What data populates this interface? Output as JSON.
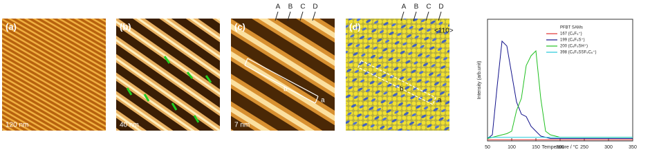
{
  "panels": [
    {
      "label": "(a)",
      "scale": "120 nm"
    },
    {
      "label": "(b)",
      "scale": "40 nm"
    },
    {
      "label": "(c)",
      "scale": "7 nm",
      "rows": [
        "A",
        "B",
        "C",
        "D"
      ],
      "points": [
        "a",
        "b"
      ]
    },
    {
      "label": "(d)",
      "direction": "<110>",
      "rows": [
        "A",
        "B",
        "C",
        "D"
      ],
      "points": [
        "a",
        "b"
      ]
    }
  ],
  "chart_data": {
    "type": "line",
    "legend_title": "PFBT SAMs",
    "xlabel": "Temperature / °C",
    "ylabel": "Intensity (arb.unit)",
    "x": [
      50,
      60,
      70,
      80,
      90,
      100,
      110,
      120,
      130,
      140,
      150,
      160,
      170,
      180,
      190,
      200,
      210,
      220,
      230,
      240,
      250,
      260,
      270,
      280,
      290,
      300,
      310,
      320,
      330,
      340,
      350
    ],
    "xlim": [
      50,
      350
    ],
    "xticks": [
      50,
      100,
      150,
      200,
      250,
      300,
      350
    ],
    "ylim": [
      0,
      1
    ],
    "legend": "upper right",
    "series": [
      {
        "name": "167 (C₆F₅⁺)",
        "color": "#e03030",
        "values": [
          0.01,
          0.01,
          0.01,
          0.01,
          0.01,
          0.01,
          0.01,
          0.01,
          0.01,
          0.01,
          0.01,
          0.01,
          0.01,
          0.01,
          0.01,
          0.01,
          0.01,
          0.01,
          0.01,
          0.01,
          0.01,
          0.01,
          0.01,
          0.01,
          0.01,
          0.01,
          0.01,
          0.01,
          0.01,
          0.01,
          0.01
        ]
      },
      {
        "name": "199 (C₆F₅S⁺)",
        "color": "#10108a",
        "values": [
          0.02,
          0.05,
          0.45,
          0.82,
          0.78,
          0.55,
          0.32,
          0.22,
          0.2,
          0.12,
          0.08,
          0.04,
          0.03,
          0.02,
          0.02,
          0.02,
          0.02,
          0.02,
          0.02,
          0.02,
          0.02,
          0.02,
          0.02,
          0.02,
          0.02,
          0.02,
          0.02,
          0.02,
          0.02,
          0.02,
          0.02
        ]
      },
      {
        "name": "200 (C₆F₅SH⁺)",
        "color": "#20c020",
        "values": [
          0.02,
          0.03,
          0.04,
          0.05,
          0.06,
          0.08,
          0.25,
          0.35,
          0.62,
          0.7,
          0.74,
          0.35,
          0.08,
          0.05,
          0.04,
          0.03,
          0.03,
          0.03,
          0.03,
          0.03,
          0.03,
          0.03,
          0.03,
          0.03,
          0.03,
          0.03,
          0.03,
          0.03,
          0.03,
          0.03,
          0.03
        ]
      },
      {
        "name": "398 (C₆F₅SSF₅C₆⁺)",
        "color": "#20c8d8",
        "values": [
          0.03,
          0.03,
          0.03,
          0.03,
          0.03,
          0.03,
          0.03,
          0.03,
          0.03,
          0.03,
          0.03,
          0.03,
          0.03,
          0.03,
          0.03,
          0.03,
          0.03,
          0.03,
          0.03,
          0.03,
          0.03,
          0.03,
          0.03,
          0.03,
          0.03,
          0.03,
          0.03,
          0.03,
          0.03,
          0.03,
          0.03
        ]
      }
    ]
  }
}
